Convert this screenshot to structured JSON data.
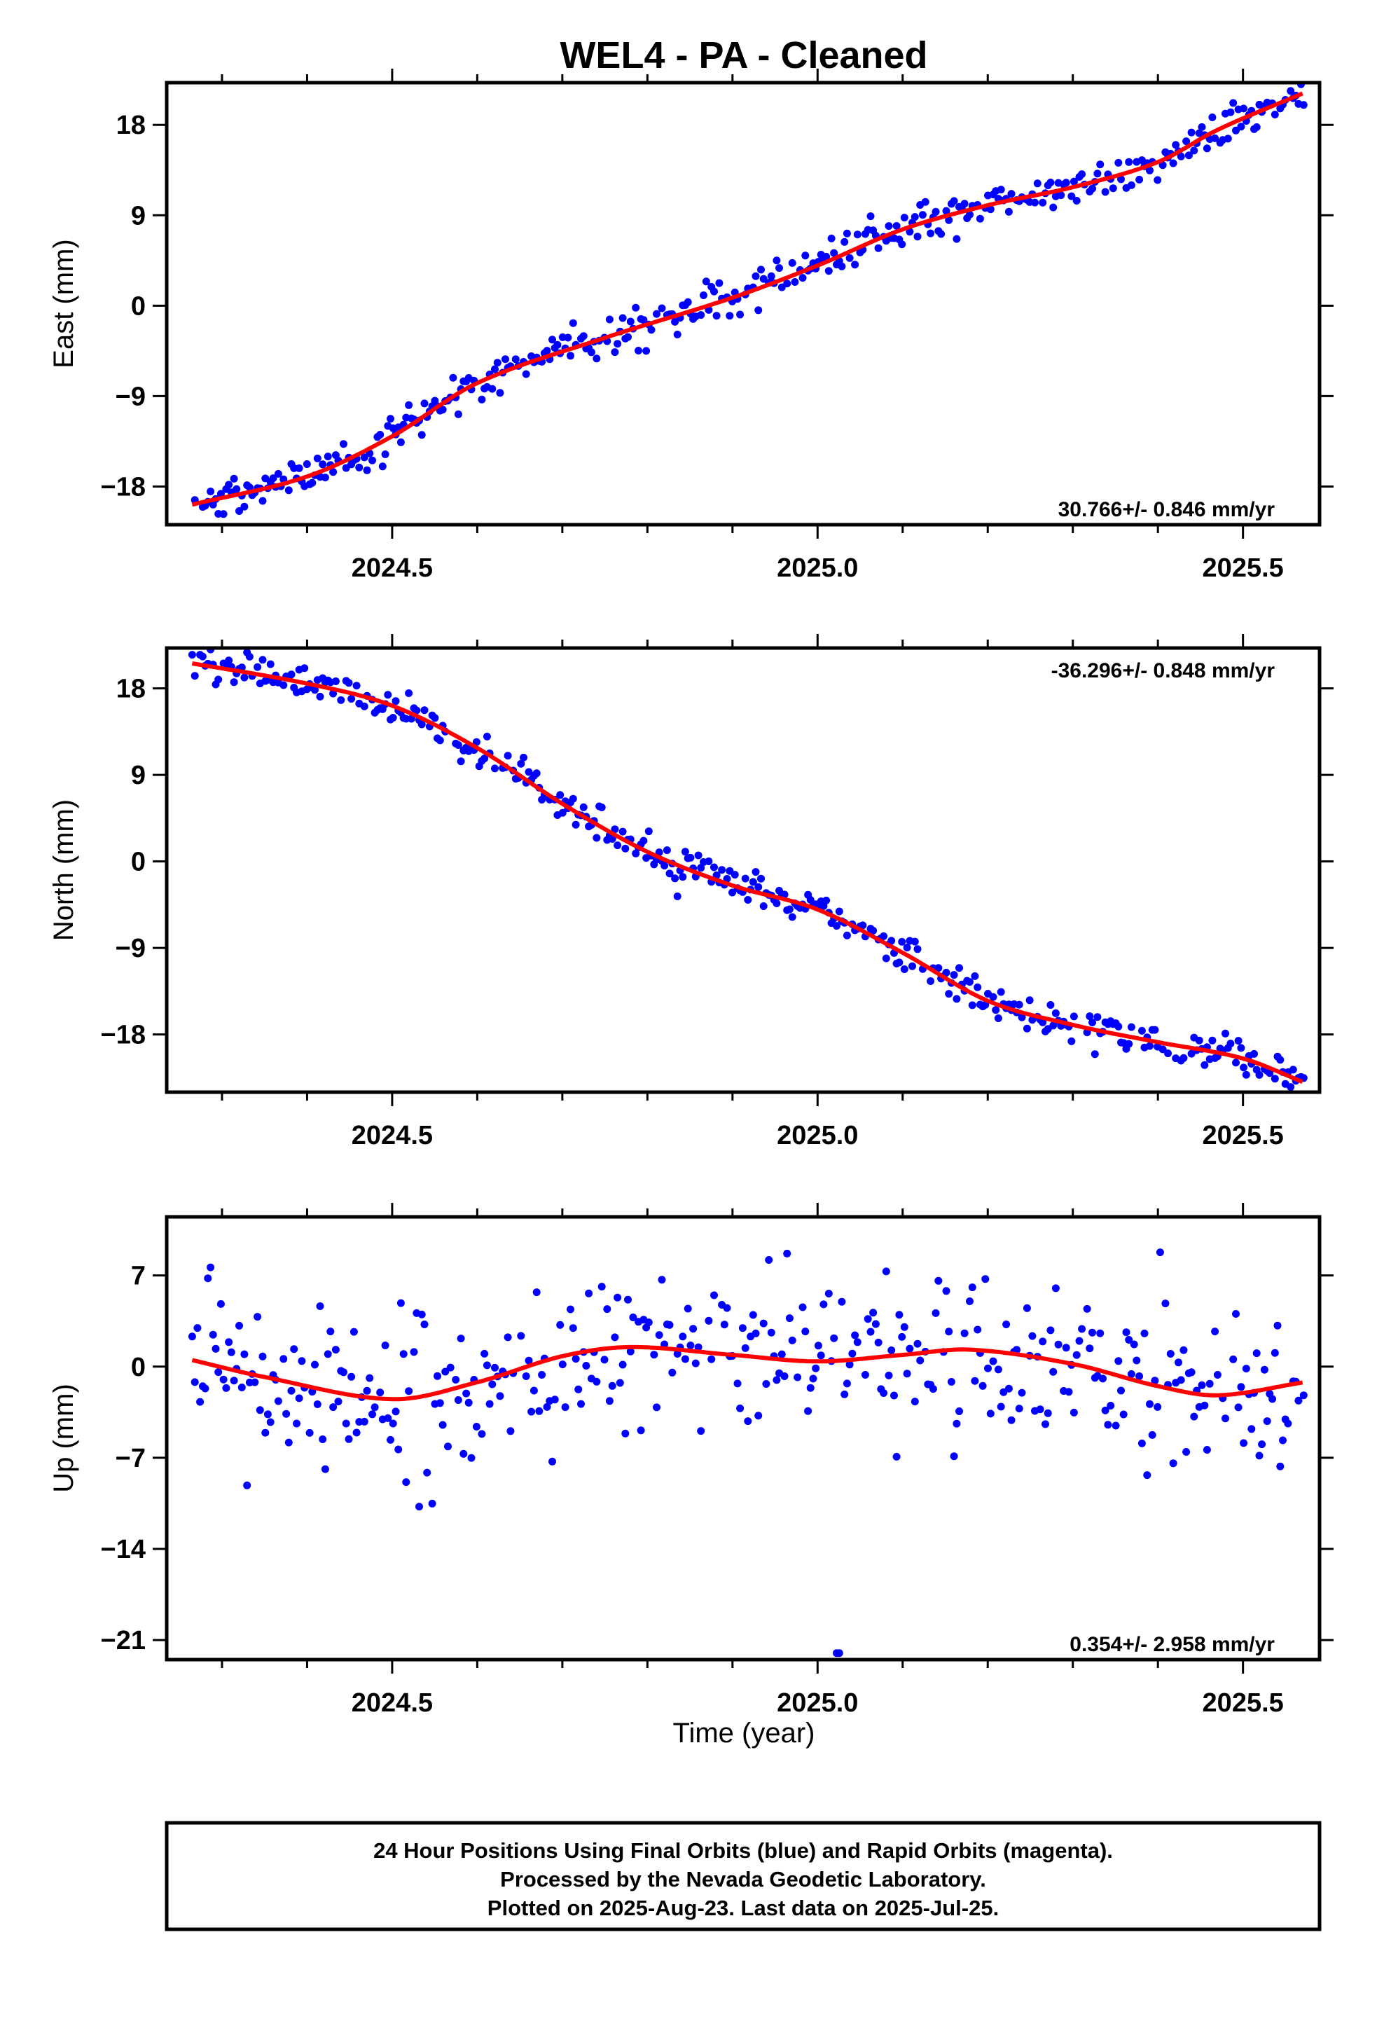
{
  "title": "WEL4  - PA - Cleaned",
  "x_axis_label": "Time (year)",
  "footer": {
    "lines": [
      "24 Hour Positions Using Final Orbits (blue) and Rapid Orbits (magenta).",
      "Processed by the Nevada Geodetic Laboratory.",
      "Plotted on 2025-Aug-23. Last data on 2025-Jul-25."
    ]
  },
  "colors": {
    "points": "#0000ff",
    "fit": "#ff0000",
    "frame": "#000000"
  },
  "chart_data": [
    {
      "type": "scatter",
      "ylabel": "East (mm)",
      "rate_text": "30.766+/- 0.846 mm/yr",
      "rate_position": "bottom-right",
      "xlim": [
        2024.235,
        2025.59
      ],
      "ylim": [
        -21.8,
        22.2
      ],
      "xticks": [
        2024.5,
        2025.0,
        2025.5
      ],
      "xtick_labels": [
        "2024.5",
        "2025.0",
        "2025.5"
      ],
      "yticks": [
        -18,
        -9,
        0,
        9,
        18
      ],
      "ytick_labels": [
        "−18",
        "−9",
        "0",
        "9",
        "18"
      ],
      "x_start": 2024.265,
      "x_end": 2025.572,
      "y_start": -19.8,
      "y_end": 21.2,
      "fit_anchors": [
        [
          2024.265,
          -19.8
        ],
        [
          2024.4,
          -17.0
        ],
        [
          2024.5,
          -13.0
        ],
        [
          2024.6,
          -7.7
        ],
        [
          2024.75,
          -3.2
        ],
        [
          2024.9,
          0.8
        ],
        [
          2025.0,
          4.0
        ],
        [
          2025.1,
          7.6
        ],
        [
          2025.2,
          10.0
        ],
        [
          2025.3,
          11.8
        ],
        [
          2025.4,
          14.3
        ],
        [
          2025.47,
          17.5
        ],
        [
          2025.572,
          21.2
        ]
      ],
      "seasonal_fit": true,
      "series": [
        {
          "name": "Final Orbits (blue)",
          "points": []
        }
      ]
    },
    {
      "type": "scatter",
      "ylabel": "North (mm)",
      "rate_text": "-36.296+/- 0.848 mm/yr",
      "rate_position": "top-right",
      "xlim": [
        2024.235,
        2025.59
      ],
      "ylim": [
        -24.0,
        22.2
      ],
      "xticks": [
        2024.5,
        2025.0,
        2025.5
      ],
      "xtick_labels": [
        "2024.5",
        "2025.0",
        "2025.5"
      ],
      "yticks": [
        -18,
        -9,
        0,
        9,
        18
      ],
      "ytick_labels": [
        "−18",
        "−9",
        "0",
        "9",
        "18"
      ],
      "x_start": 2024.265,
      "x_end": 2025.572,
      "y_start": 20.6,
      "y_end": -23.0,
      "fit_anchors": [
        [
          2024.265,
          20.6
        ],
        [
          2024.4,
          18.5
        ],
        [
          2024.5,
          16.2
        ],
        [
          2024.6,
          11.8
        ],
        [
          2024.7,
          6.0
        ],
        [
          2024.8,
          1.0
        ],
        [
          2024.9,
          -2.5
        ],
        [
          2025.0,
          -5.0
        ],
        [
          2025.1,
          -9.5
        ],
        [
          2025.2,
          -14.5
        ],
        [
          2025.3,
          -17.0
        ],
        [
          2025.4,
          -18.8
        ],
        [
          2025.5,
          -20.5
        ],
        [
          2025.572,
          -23.0
        ]
      ],
      "seasonal_fit": true,
      "series": [
        {
          "name": "Final Orbits (blue)",
          "points": []
        }
      ]
    },
    {
      "type": "scatter",
      "ylabel": "Up (mm)",
      "rate_text": "0.354+/- 2.958 mm/yr",
      "rate_position": "bottom-right",
      "xlim": [
        2024.235,
        2025.59
      ],
      "ylim": [
        -22.5,
        11.5
      ],
      "xticks": [
        2024.5,
        2025.0,
        2025.5
      ],
      "xtick_labels": [
        "2024.5",
        "2025.0",
        "2025.5"
      ],
      "yticks": [
        -21,
        -14,
        -7,
        0,
        7
      ],
      "ytick_labels": [
        "−21",
        "−14",
        "−7",
        "0",
        "7"
      ],
      "x_start": 2024.265,
      "x_end": 2025.572,
      "y_start": 0.5,
      "y_end": -1.2,
      "fit_anchors": [
        [
          2024.265,
          0.5
        ],
        [
          2024.35,
          -0.8
        ],
        [
          2024.5,
          -2.5
        ],
        [
          2024.6,
          -1.2
        ],
        [
          2024.7,
          0.8
        ],
        [
          2024.78,
          1.5
        ],
        [
          2024.9,
          0.9
        ],
        [
          2025.0,
          0.4
        ],
        [
          2025.1,
          0.9
        ],
        [
          2025.18,
          1.3
        ],
        [
          2025.3,
          0.2
        ],
        [
          2025.4,
          -1.5
        ],
        [
          2025.47,
          -2.2
        ],
        [
          2025.572,
          -1.2
        ]
      ],
      "seasonal_fit": true,
      "series": [
        {
          "name": "Final Orbits (blue)",
          "points": []
        }
      ]
    }
  ]
}
